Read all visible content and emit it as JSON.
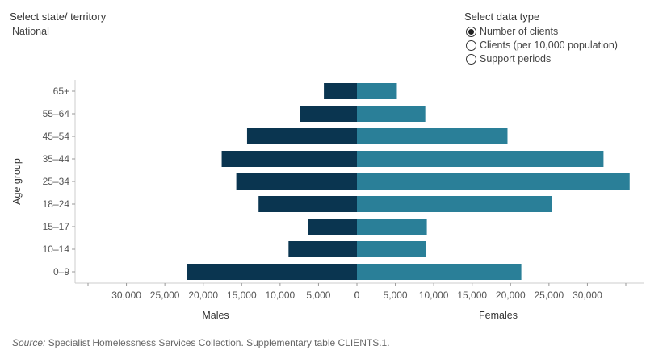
{
  "controls": {
    "state": {
      "title": "Select state/ territory",
      "value": "National"
    },
    "data_type": {
      "title": "Select data type",
      "options": [
        "Number of clients",
        "Clients (per 10,000 population)",
        "Support periods"
      ],
      "selected": 0
    }
  },
  "chart_data": {
    "type": "bar",
    "orientation": "horizontal-population-pyramid",
    "ylabel": "Age group",
    "categories": [
      "65+",
      "55–64",
      "45–54",
      "35–44",
      "25–34",
      "18–24",
      "15–17",
      "10–14",
      "0–9"
    ],
    "series": [
      {
        "name": "Males",
        "values": [
          4300,
          7400,
          14300,
          17600,
          15700,
          12800,
          6400,
          8900,
          22100
        ],
        "color": "#0a3550"
      },
      {
        "name": "Females",
        "values": [
          5200,
          8900,
          19600,
          32100,
          35500,
          25400,
          9100,
          9000,
          21400
        ],
        "color": "#2a7f98"
      }
    ],
    "xlim": [
      -35000,
      35000
    ],
    "left_ticks": [
      "30,000",
      "25,000",
      "20,000",
      "15,000",
      "10,000",
      "5,000",
      "0"
    ],
    "right_ticks": [
      "0",
      "5,000",
      "10,000",
      "15,000",
      "20,000",
      "25,000",
      "30,000"
    ],
    "left_axis_label": "Males",
    "right_axis_label": "Females",
    "legend": "none"
  },
  "footer": {
    "source_label": "Source:",
    "source_text": " Specialist Homelessness Services Collection. Supplementary table CLIENTS.1."
  }
}
